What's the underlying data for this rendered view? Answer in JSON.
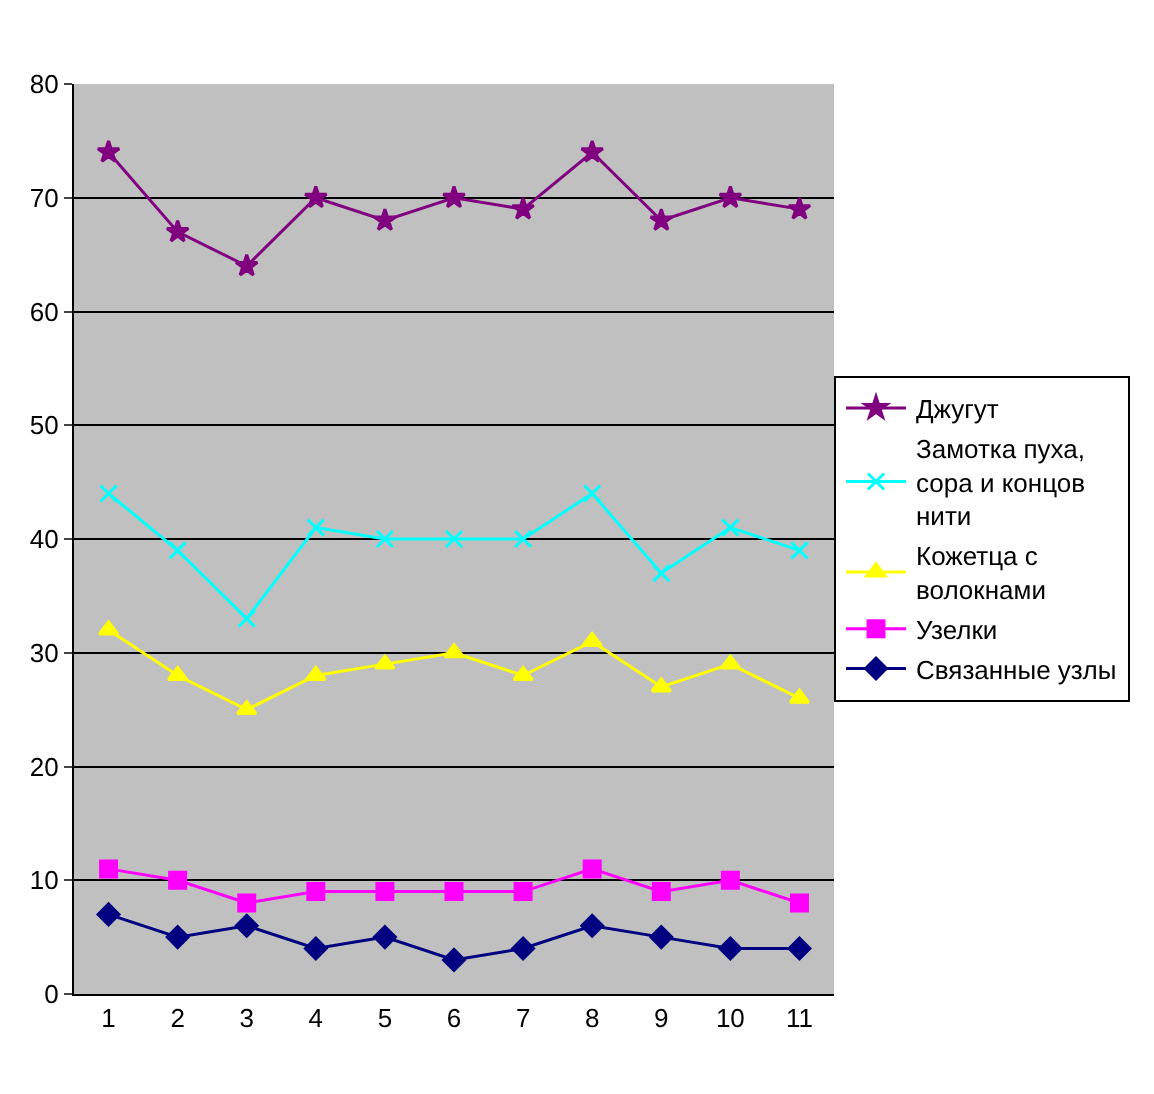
{
  "chart_data": {
    "type": "line",
    "categories": [
      "1",
      "2",
      "3",
      "4",
      "5",
      "6",
      "7",
      "8",
      "9",
      "10",
      "11"
    ],
    "ylim": [
      0,
      80
    ],
    "yticks": [
      0,
      10,
      20,
      30,
      40,
      50,
      60,
      70,
      80
    ],
    "grid": "y",
    "legend": "right",
    "series": [
      {
        "name": "Джугут",
        "color": "#800080",
        "marker": "star",
        "values": [
          74,
          67,
          64,
          70,
          68,
          70,
          69,
          74,
          68,
          70,
          69
        ]
      },
      {
        "name": "Замотка пуха, сора и концов нити",
        "color": "#00ffff",
        "marker": "cross",
        "values": [
          44,
          39,
          33,
          41,
          40,
          40,
          40,
          44,
          37,
          41,
          39
        ]
      },
      {
        "name": "Кожетца с волокнами",
        "color": "#ffff00",
        "marker": "triangle",
        "values": [
          32,
          28,
          25,
          28,
          29,
          30,
          28,
          31,
          27,
          29,
          26
        ]
      },
      {
        "name": "Узелки",
        "color": "#ff00ff",
        "marker": "square",
        "values": [
          11,
          10,
          8,
          9,
          9,
          9,
          9,
          11,
          9,
          10,
          8
        ]
      },
      {
        "name": "Связанные узлы",
        "color": "#000080",
        "marker": "diamond",
        "values": [
          7,
          5,
          6,
          4,
          5,
          3,
          4,
          6,
          5,
          4,
          4
        ]
      }
    ]
  }
}
